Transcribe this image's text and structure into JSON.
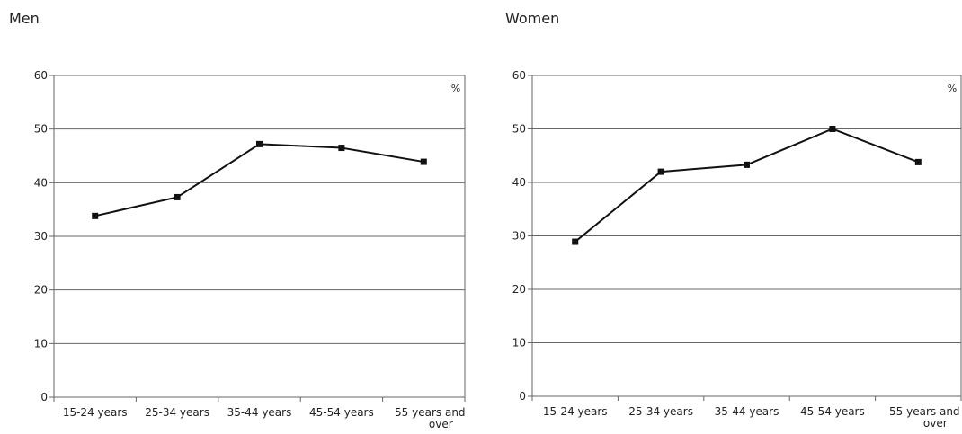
{
  "chart_data": [
    {
      "type": "line",
      "title": "Men",
      "unit": "%",
      "categories": [
        "15-24 years",
        "25-34 years",
        "35-44 years",
        "45-54 years",
        "55 years and over"
      ],
      "values": [
        33.8,
        37.3,
        47.2,
        46.5,
        43.9
      ],
      "ylim": [
        0,
        60
      ],
      "yticks": [
        0,
        10,
        20,
        30,
        40,
        50,
        60
      ],
      "grid": true,
      "marker": "square",
      "line_color": "#111111"
    },
    {
      "type": "line",
      "title": "Women",
      "unit": "%",
      "categories": [
        "15-24 years",
        "25-34 years",
        "35-44 years",
        "45-54 years",
        "55 years and over"
      ],
      "values": [
        28.9,
        42.0,
        43.3,
        50.0,
        43.8
      ],
      "ylim": [
        0,
        60
      ],
      "yticks": [
        0,
        10,
        20,
        30,
        40,
        50,
        60
      ],
      "grid": true,
      "marker": "square",
      "line_color": "#111111"
    }
  ]
}
